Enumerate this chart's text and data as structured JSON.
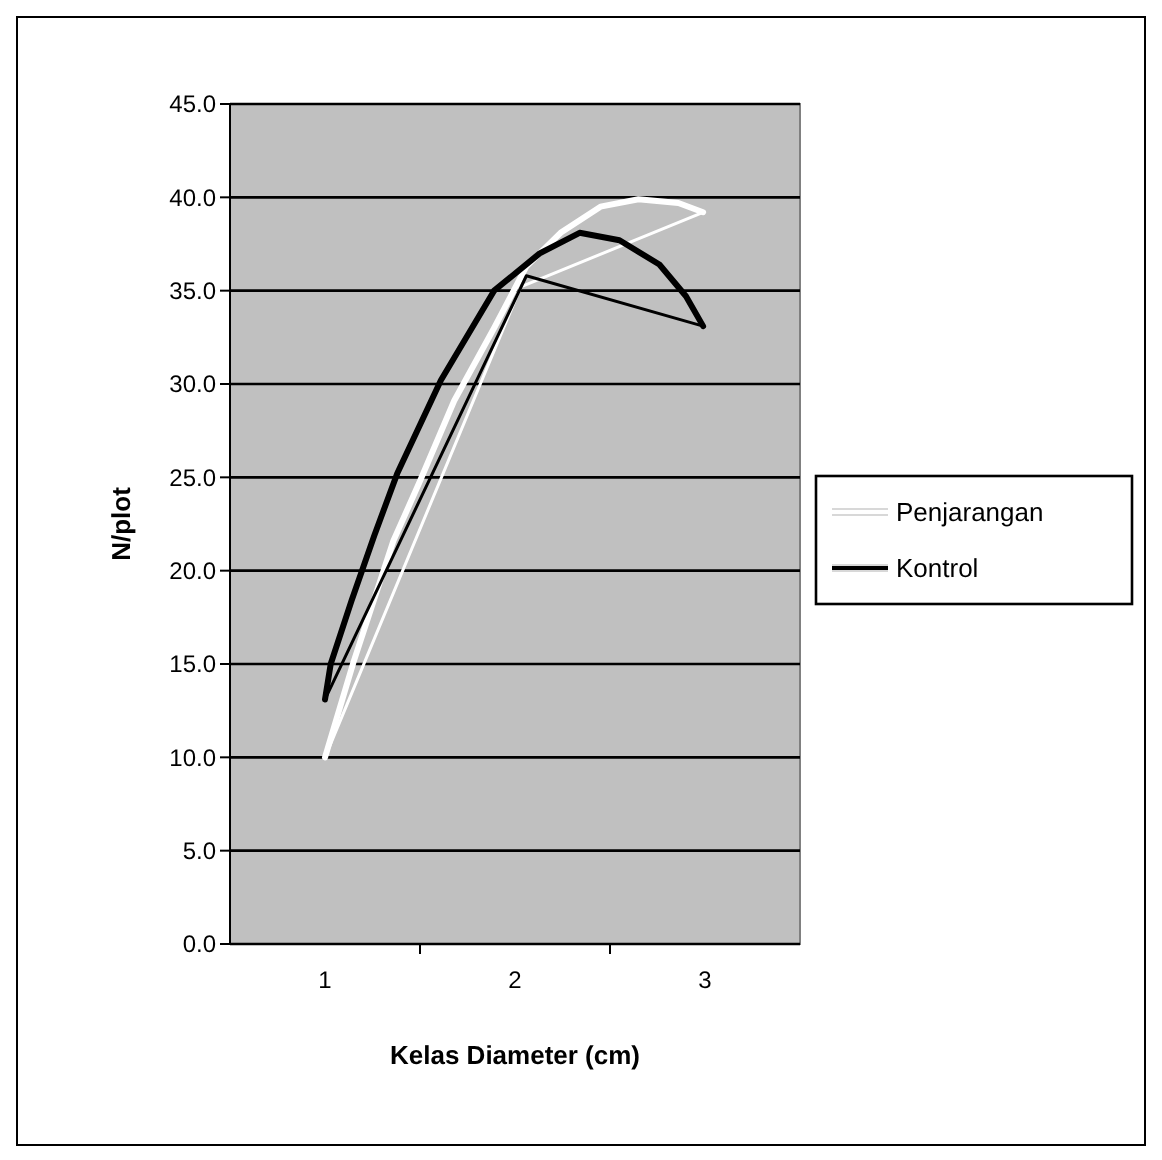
{
  "chart_data": {
    "type": "line",
    "xlabel": "Kelas Diameter (cm)",
    "ylabel": "N/plot",
    "xlim": [
      0.5,
      3.5
    ],
    "xticks": [
      1,
      2,
      3
    ],
    "ylim": [
      0,
      45
    ],
    "yticks": [
      {
        "value": 0,
        "label": "0.0"
      },
      {
        "value": 5,
        "label": "5.0"
      },
      {
        "value": 10,
        "label": "10.0"
      },
      {
        "value": 15,
        "label": "15.0"
      },
      {
        "value": 20,
        "label": "20.0"
      },
      {
        "value": 25,
        "label": "25.0"
      },
      {
        "value": 30,
        "label": "30.0"
      },
      {
        "value": 35,
        "label": "35.0"
      },
      {
        "value": 40,
        "label": "40.0"
      },
      {
        "value": 45,
        "label": "45.0"
      }
    ],
    "grid": "y",
    "legend": "right",
    "marker": "none",
    "line_style": "solid",
    "series": [
      {
        "name": "Penjarangan",
        "color": "#ffffff",
        "x": [
          1.0,
          1.15,
          1.36,
          1.5,
          1.68,
          1.89,
          2.06,
          2.24,
          2.45,
          2.65,
          2.86,
          2.99
        ],
        "values": [
          10.0,
          15.1,
          21.6,
          24.8,
          29.1,
          33.0,
          36.3,
          38.1,
          39.5,
          39.9,
          39.7,
          39.2
        ]
      },
      {
        "color": "#ffffff",
        "x": [
          1.0,
          2.03,
          2.99
        ],
        "values": [
          10.0,
          35.2,
          39.2
        ]
      },
      {
        "name": "Kontrol",
        "color": "#000000",
        "x": [
          1.0,
          1.03,
          1.14,
          1.26,
          1.38,
          1.61,
          1.89,
          2.13,
          2.34,
          2.55,
          2.76,
          2.9,
          2.99
        ],
        "values": [
          13.1,
          15.0,
          18.4,
          21.9,
          25.2,
          30.2,
          35.0,
          37.0,
          38.1,
          37.7,
          36.4,
          34.7,
          33.1
        ]
      },
      {
        "color": "#000000",
        "x": [
          1.0,
          2.06,
          2.99
        ],
        "values": [
          13.1,
          35.8,
          33.1
        ]
      }
    ]
  }
}
